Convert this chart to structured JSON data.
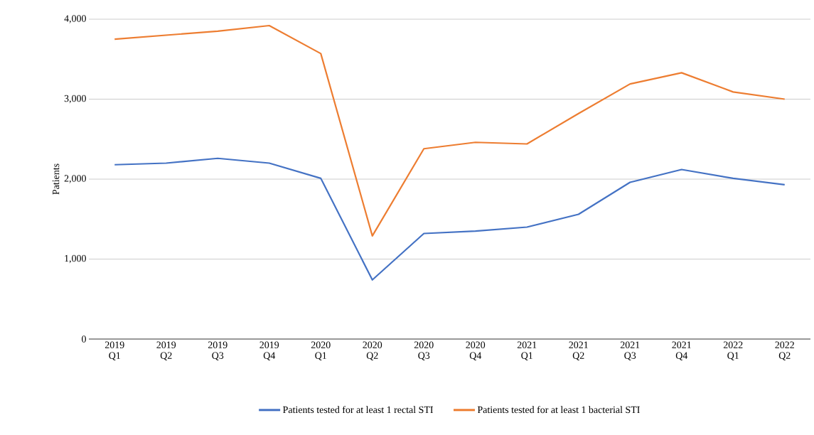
{
  "chart_data": {
    "type": "line",
    "ylabel": "Patients",
    "categories": [
      "2019 Q1",
      "2019 Q2",
      "2019 Q3",
      "2019 Q4",
      "2020 Q1",
      "2020 Q2",
      "2020 Q3",
      "2020 Q4",
      "2021 Q1",
      "2021 Q2",
      "2021 Q3",
      "2021 Q4",
      "2022 Q1",
      "2022 Q2"
    ],
    "series": [
      {
        "name": "Patients tested for at least 1 rectal STI",
        "color": "#4472c4",
        "values": [
          2180,
          2200,
          2260,
          2200,
          2010,
          740,
          1320,
          1350,
          1400,
          1560,
          1960,
          2120,
          2010,
          1930
        ]
      },
      {
        "name": "Patients tested for at least 1 bacterial STI",
        "color": "#ed7d31",
        "values": [
          3750,
          3800,
          3850,
          3920,
          3570,
          1290,
          2380,
          2460,
          2440,
          2820,
          3190,
          3330,
          3090,
          3000
        ]
      }
    ],
    "ylim": [
      0,
      4000
    ],
    "yticks": [
      {
        "value": 0,
        "label": "0"
      },
      {
        "value": 1000,
        "label": "1,000"
      },
      {
        "value": 2000,
        "label": "2,000"
      },
      {
        "value": 3000,
        "label": "3,000"
      },
      {
        "value": 4000,
        "label": "4,000"
      }
    ],
    "grid": "y",
    "legend": "bottom",
    "marker": "none",
    "line_style": "solid"
  }
}
